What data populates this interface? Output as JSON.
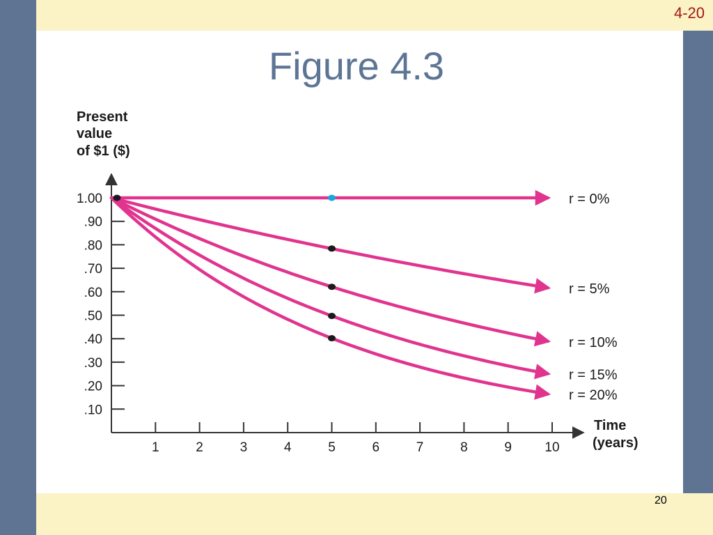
{
  "slide": {
    "tag": "4-20",
    "title": "Figure 4.3",
    "page_number": "20",
    "colors": {
      "band": "#fbf3c6",
      "side": "#5f7393",
      "title": "#5d7595",
      "tag": "#a01818",
      "curve": "#e0348f",
      "marker": "#1a1a1a",
      "marker_highlight": "#19a6e0"
    }
  },
  "chart_data": {
    "type": "line",
    "ylabel": [
      "Present",
      "value",
      "of $1 ($)"
    ],
    "xlabel": [
      "Time",
      "(years)"
    ],
    "x": [
      0,
      1,
      2,
      3,
      4,
      5,
      6,
      7,
      8,
      9,
      10
    ],
    "xticks": [
      "1",
      "2",
      "3",
      "4",
      "5",
      "6",
      "7",
      "8",
      "9",
      "10"
    ],
    "yticks": [
      "1.00",
      ".90",
      ".80",
      ".70",
      ".60",
      ".50",
      ".40",
      ".30",
      ".20",
      ".10"
    ],
    "ytick_values": [
      1.0,
      0.9,
      0.8,
      0.7,
      0.6,
      0.5,
      0.4,
      0.3,
      0.2,
      0.1
    ],
    "xlim": [
      0,
      10.5
    ],
    "ylim": [
      0,
      1.08
    ],
    "grid": false,
    "series": [
      {
        "name": "r = 0%",
        "rate": 0.0,
        "values": [
          1.0,
          1.0,
          1.0,
          1.0,
          1.0,
          1.0,
          1.0,
          1.0,
          1.0,
          1.0,
          1.0
        ]
      },
      {
        "name": "r = 5%",
        "rate": 0.05,
        "values": [
          1.0,
          0.952,
          0.907,
          0.864,
          0.823,
          0.784,
          0.746,
          0.711,
          0.677,
          0.645,
          0.614
        ]
      },
      {
        "name": "r = 10%",
        "rate": 0.1,
        "values": [
          1.0,
          0.909,
          0.826,
          0.751,
          0.683,
          0.621,
          0.564,
          0.513,
          0.467,
          0.424,
          0.386
        ]
      },
      {
        "name": "r = 15%",
        "rate": 0.15,
        "values": [
          1.0,
          0.87,
          0.756,
          0.658,
          0.572,
          0.497,
          0.432,
          0.376,
          0.327,
          0.284,
          0.247
        ]
      },
      {
        "name": "r = 20%",
        "rate": 0.2,
        "values": [
          1.0,
          0.833,
          0.694,
          0.579,
          0.482,
          0.402,
          0.335,
          0.279,
          0.233,
          0.194,
          0.162
        ]
      }
    ],
    "markers": [
      {
        "x": 0,
        "y": 1.0,
        "highlight": false
      },
      {
        "x": 5,
        "y": 1.0,
        "highlight": true
      },
      {
        "x": 5,
        "y": 0.784,
        "highlight": false
      },
      {
        "x": 5,
        "y": 0.621,
        "highlight": false
      },
      {
        "x": 5,
        "y": 0.497,
        "highlight": false
      },
      {
        "x": 5,
        "y": 0.402,
        "highlight": false
      }
    ]
  }
}
